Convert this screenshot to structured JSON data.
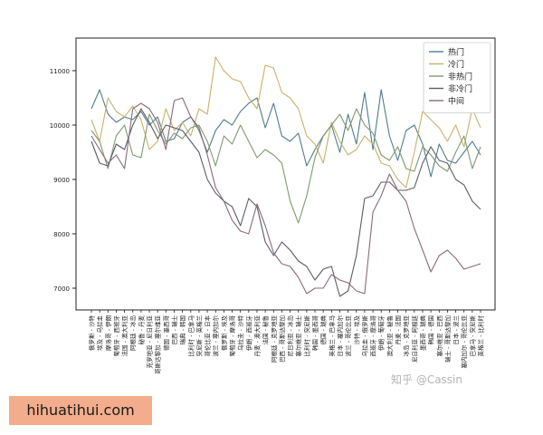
{
  "watermark": "知乎 @Cassin",
  "banner": "hihuatihui.com",
  "chart_data": {
    "type": "line",
    "title": "",
    "xlabel": "",
    "ylabel": "",
    "ylim": [
      6600,
      11600
    ],
    "yticks": [
      7000,
      8000,
      9000,
      10000,
      11000
    ],
    "grid": false,
    "legend_position": "top-right",
    "categories": [
      "俄罗斯 - 沙特",
      "埃及 - 乌拉圭",
      "摩洛哥 - 伊朗",
      "葡萄牙 - 西班牙",
      "法国 - 澳大利亚",
      "阿根廷 - 冰岛",
      "秘鲁 - 丹麦",
      "克罗地亚 - 尼日利亚",
      "哥斯达黎加 - 塞尔维亚",
      "德国 - 墨西哥",
      "巴西 - 瑞士",
      "瑞典 - 韩国",
      "比利时 - 巴拿马",
      "突尼斯 - 英格兰",
      "哥伦比亚 - 日本",
      "波兰 - 塞内加尔",
      "俄罗斯 - 埃及",
      "葡萄牙 - 摩洛哥",
      "乌拉圭 - 沙特",
      "伊朗 - 西班牙",
      "丹麦 - 澳大利亚",
      "法国 - 秘鲁",
      "阿根廷 - 克罗地亚",
      "巴西 - 哥斯达黎加",
      "尼日利亚 - 冰岛",
      "塞尔维亚 - 瑞士",
      "比利时 - 突尼斯",
      "韩国 - 墨西哥",
      "德国 - 瑞典",
      "英格兰 - 巴拿马",
      "日本 - 塞内加尔",
      "波兰 - 哥伦比亚",
      "沙特 - 埃及",
      "乌拉圭 - 俄罗斯",
      "西班牙 - 摩洛哥",
      "伊朗 - 葡萄牙",
      "澳大利亚 - 秘鲁",
      "丹麦 - 法国",
      "冰岛 - 克罗地亚",
      "尼日利亚 - 阿根廷",
      "墨西哥 - 瑞典",
      "韩国 - 德国",
      "塞尔维亚 - 巴西",
      "瑞士 - 哥斯达黎加",
      "日本 - 波兰",
      "塞内加尔 - 哥伦比亚",
      "巴拿马 - 突尼斯",
      "英格兰 - 比利时"
    ],
    "series": [
      {
        "name": "热门",
        "color": "#4f7d8a",
        "values": [
          10300,
          10650,
          10200,
          10050,
          10150,
          10100,
          10250,
          10000,
          10150,
          9700,
          9750,
          10050,
          10150,
          9900,
          9500,
          9900,
          10100,
          10000,
          10250,
          10400,
          10500,
          9950,
          10400,
          9800,
          9700,
          9850,
          9250,
          9550,
          9800,
          10000,
          9500,
          10200,
          9650,
          10600,
          9550,
          10650,
          9800,
          9350,
          9900,
          10000,
          9650,
          9050,
          9650,
          9350,
          9300,
          9500,
          9700,
          9450
        ]
      },
      {
        "name": "冷门",
        "color": "#c8b16a",
        "values": [
          10100,
          9700,
          10500,
          10250,
          10150,
          10350,
          10100,
          9550,
          9700,
          10300,
          9900,
          10050,
          9800,
          10300,
          10200,
          11250,
          11000,
          10850,
          10800,
          10500,
          10300,
          11100,
          11050,
          10600,
          10500,
          10300,
          9800,
          9650,
          9300,
          10050,
          9700,
          9450,
          9550,
          9800,
          9650,
          9300,
          9250,
          9000,
          8850,
          9500,
          10250,
          10100,
          9950,
          9700,
          10000,
          9600,
          10300,
          9950
        ]
      },
      {
        "name": "非热门",
        "color": "#7f9a70",
        "values": [
          9900,
          9700,
          9200,
          9800,
          10000,
          9450,
          9400,
          10200,
          9900,
          9650,
          9850,
          9750,
          9950,
          10000,
          9700,
          9250,
          9800,
          9650,
          10000,
          9700,
          9400,
          9550,
          9450,
          9300,
          8600,
          8200,
          8700,
          9400,
          9800,
          10000,
          10200,
          9900,
          10300,
          10000,
          9850,
          9450,
          9350,
          9600,
          9200,
          9150,
          9600,
          9450,
          9250,
          9150,
          9500,
          9800,
          9200,
          9600
        ]
      },
      {
        "name": "非冷门",
        "color": "#5b5b6b",
        "values": [
          9700,
          9300,
          9250,
          9650,
          9550,
          10000,
          10300,
          10050,
          9750,
          10000,
          9950,
          9900,
          9700,
          9500,
          9000,
          8750,
          8600,
          8500,
          8150,
          8650,
          8500,
          7850,
          7600,
          7850,
          7700,
          7500,
          7400,
          7150,
          7350,
          7400,
          6850,
          6950,
          7600,
          8650,
          8700,
          8950,
          8950,
          8800,
          8800,
          8850,
          9300,
          9600,
          9350,
          9300,
          9000,
          8900,
          8600,
          8450
        ]
      },
      {
        "name": "中间",
        "color": "#8a6a78",
        "values": [
          9800,
          9550,
          9300,
          9450,
          9200,
          10300,
          10400,
          10300,
          10050,
          9550,
          10450,
          10500,
          10150,
          9950,
          9450,
          8850,
          8600,
          8250,
          8050,
          8000,
          8550,
          8150,
          7650,
          7450,
          7400,
          7200,
          6900,
          7000,
          7000,
          7250,
          7150,
          7100,
          6950,
          6900,
          8400,
          8700,
          9100,
          8800,
          8600,
          8100,
          7700,
          7300,
          7600,
          7700,
          7550,
          7350,
          7400,
          7450
        ]
      }
    ]
  }
}
